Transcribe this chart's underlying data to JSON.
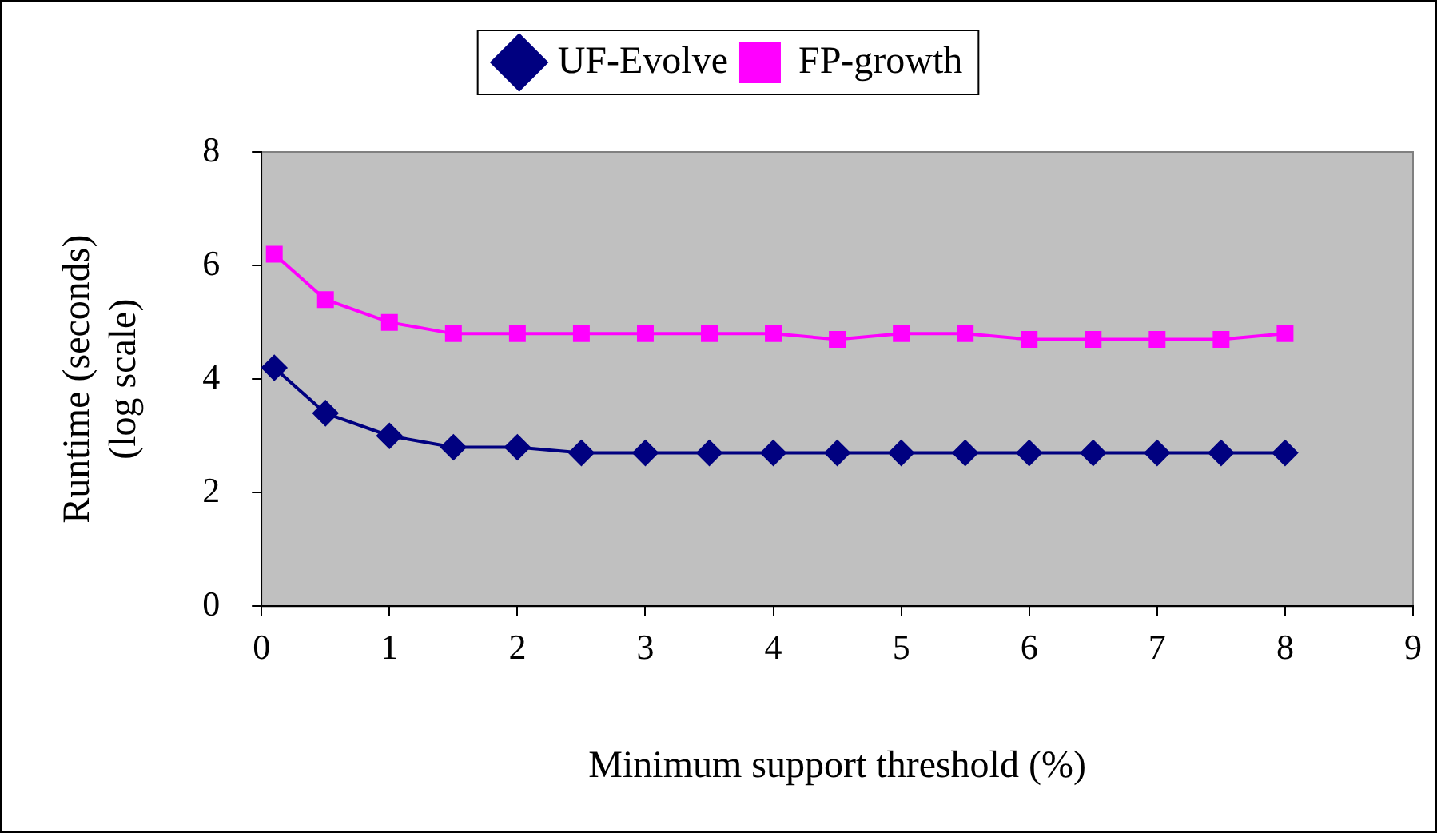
{
  "chart_data": {
    "type": "line",
    "xlabel": "Minimum support threshold (%)",
    "ylabel": "Runtime (seconds) (log scale)",
    "x": [
      0.1,
      0.5,
      1,
      1.5,
      2,
      2.5,
      3,
      3.5,
      4,
      4.5,
      5,
      5.5,
      6,
      6.5,
      7,
      7.5,
      8
    ],
    "series": [
      {
        "name": "UF-Evolve",
        "color": "#000080",
        "marker": "diamond",
        "values": [
          4.2,
          3.4,
          3.0,
          2.8,
          2.8,
          2.7,
          2.7,
          2.7,
          2.7,
          2.7,
          2.7,
          2.7,
          2.7,
          2.7,
          2.7,
          2.7,
          2.7
        ]
      },
      {
        "name": "FP-growth",
        "color": "#ff00ff",
        "marker": "square",
        "values": [
          6.2,
          5.4,
          5.0,
          4.8,
          4.8,
          4.8,
          4.8,
          4.8,
          4.8,
          4.7,
          4.8,
          4.8,
          4.7,
          4.7,
          4.7,
          4.7,
          4.8
        ]
      }
    ],
    "xlim": [
      0,
      9
    ],
    "xticks": [
      0,
      1,
      2,
      3,
      4,
      5,
      6,
      7,
      8,
      9
    ],
    "ylim": [
      0,
      8
    ],
    "yticks": [
      0,
      2,
      4,
      6,
      8
    ],
    "grid": false,
    "legend": "top",
    "line_style": "solid"
  }
}
